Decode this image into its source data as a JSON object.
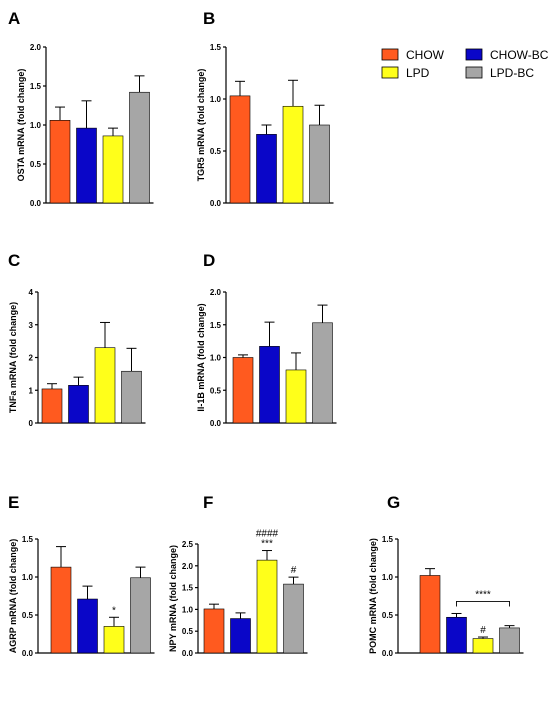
{
  "colors": {
    "CHOW": "#FF5A1F",
    "CHOW-BC": "#0A06C8",
    "LPD": "#FFFF1A",
    "LPD-BC": "#A6A6A6",
    "axis": "#000000"
  },
  "legend": {
    "entries": [
      {
        "key": "CHOW",
        "label": "CHOW"
      },
      {
        "key": "LPD",
        "label": "LPD"
      },
      {
        "key": "CHOW-BC",
        "label": "CHOW-BC"
      },
      {
        "key": "LPD-BC",
        "label": "LPD-BC"
      }
    ]
  },
  "chart_data": [
    {
      "panel": "A",
      "type": "bar",
      "ylabel": "OSTA mRNA (fold change)",
      "groups": [
        "CHOW",
        "CHOW-BC",
        "LPD",
        "LPD-BC"
      ],
      "values": [
        1.06,
        0.96,
        0.86,
        1.42
      ],
      "errors": [
        0.17,
        0.35,
        0.1,
        0.21
      ],
      "ylim": [
        0,
        2.0
      ],
      "yticks": [
        0.0,
        0.5,
        1.0,
        1.5,
        2.0
      ],
      "ytick_labels": [
        "0.0",
        "0.5",
        "1.0",
        "1.5",
        "2.0"
      ],
      "annotations": [],
      "bracket": null
    },
    {
      "panel": "B",
      "type": "bar",
      "ylabel": "TGR5 mRNA (fold change)",
      "groups": [
        "CHOW",
        "CHOW-BC",
        "LPD",
        "LPD-BC"
      ],
      "values": [
        1.03,
        0.66,
        0.93,
        0.75
      ],
      "errors": [
        0.14,
        0.09,
        0.25,
        0.19
      ],
      "ylim": [
        0,
        1.5
      ],
      "yticks": [
        0.0,
        0.5,
        1.0,
        1.5
      ],
      "ytick_labels": [
        "0.0",
        "0.5",
        "1.0",
        "1.5"
      ],
      "annotations": [],
      "bracket": null
    },
    {
      "panel": "C",
      "type": "bar",
      "ylabel": "TNFa mRNA (fold change)",
      "groups": [
        "CHOW",
        "CHOW-BC",
        "LPD",
        "LPD-BC"
      ],
      "values": [
        1.04,
        1.15,
        2.3,
        1.58
      ],
      "errors": [
        0.16,
        0.25,
        0.77,
        0.7
      ],
      "ylim": [
        0,
        4
      ],
      "yticks": [
        0,
        1,
        2,
        3,
        4
      ],
      "ytick_labels": [
        "0",
        "1",
        "2",
        "3",
        "4"
      ],
      "annotations": [],
      "bracket": null
    },
    {
      "panel": "D",
      "type": "bar",
      "ylabel": "Il-1B mRNA (fold change)",
      "groups": [
        "CHOW",
        "CHOW-BC",
        "LPD",
        "LPD-BC"
      ],
      "values": [
        1.0,
        1.17,
        0.81,
        1.53
      ],
      "errors": [
        0.04,
        0.37,
        0.26,
        0.27
      ],
      "ylim": [
        0,
        2.0
      ],
      "yticks": [
        0.0,
        0.5,
        1.0,
        1.5,
        2.0
      ],
      "ytick_labels": [
        "0.0",
        "0.5",
        "1.0",
        "1.5",
        "2.0"
      ],
      "annotations": [],
      "bracket": null
    },
    {
      "panel": "E",
      "type": "bar",
      "ylabel": "AGRP mRNA (fold change)",
      "groups": [
        "CHOW",
        "CHOW-BC",
        "LPD",
        "LPD-BC"
      ],
      "values": [
        1.13,
        0.71,
        0.35,
        0.99
      ],
      "errors": [
        0.27,
        0.17,
        0.12,
        0.14
      ],
      "ylim": [
        0,
        1.5
      ],
      "yticks": [
        0.0,
        0.5,
        1.0,
        1.5
      ],
      "ytick_labels": [
        "0.0",
        "0.5",
        "1.0",
        "1.5"
      ],
      "annotations": [
        {
          "bar": 2,
          "lines": [
            "*"
          ]
        }
      ],
      "bracket": null
    },
    {
      "panel": "F",
      "type": "bar",
      "ylabel": "NPY mRNA (fold change)",
      "groups": [
        "CHOW",
        "CHOW-BC",
        "LPD",
        "LPD-BC"
      ],
      "values": [
        1.01,
        0.79,
        2.13,
        1.58
      ],
      "errors": [
        0.11,
        0.13,
        0.22,
        0.16
      ],
      "ylim": [
        0,
        2.5
      ],
      "yticks": [
        0.0,
        0.5,
        1.0,
        1.5,
        2.0,
        2.5
      ],
      "ytick_labels": [
        "0.0",
        "0.5",
        "1.0",
        "1.5",
        "2.0",
        "2.5"
      ],
      "annotations": [
        {
          "bar": 2,
          "lines": [
            "####",
            "***"
          ]
        },
        {
          "bar": 3,
          "lines": [
            "#"
          ]
        }
      ],
      "bracket": null
    },
    {
      "panel": "G",
      "type": "bar",
      "ylabel": "POMC mRNA (fold change)",
      "groups": [
        "CHOW",
        "CHOW-BC",
        "LPD",
        "LPD-BC"
      ],
      "values": [
        1.02,
        0.47,
        0.19,
        0.33
      ],
      "errors": [
        0.09,
        0.05,
        0.02,
        0.03
      ],
      "ylim": [
        0,
        1.5
      ],
      "yticks": [
        0.0,
        0.5,
        1.0,
        1.5
      ],
      "ytick_labels": [
        "0.0",
        "0.5",
        "1.0",
        "1.5"
      ],
      "annotations": [
        {
          "bar": 2,
          "lines": [
            "#"
          ]
        }
      ],
      "bracket": {
        "from": 1,
        "to": 3,
        "label": "****"
      }
    }
  ]
}
